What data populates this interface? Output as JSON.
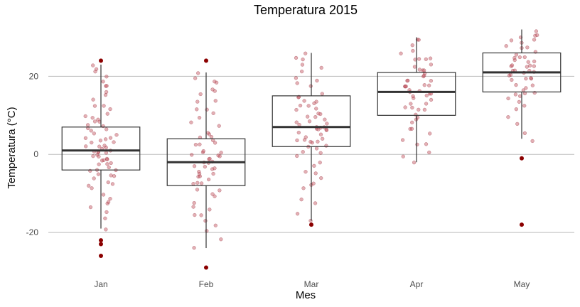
{
  "chart_data": {
    "type": "boxplot",
    "title": "Temperatura 2015",
    "xlabel": "Mes",
    "ylabel": "Temperatura (°C)",
    "categories": [
      "Jan",
      "Feb",
      "Mar",
      "Apr",
      "May"
    ],
    "yticks": [
      -20,
      0,
      20
    ],
    "ylim": [
      -30,
      33
    ],
    "grid": "horizontal",
    "colors": {
      "points": "#c0505a",
      "outliers": "#8b0000",
      "box": "#333333",
      "grid": "#bebebe"
    },
    "boxes": [
      {
        "category": "Jan",
        "q1": -4,
        "median": 1,
        "q3": 7,
        "whisker_low": -19,
        "whisker_high": 23,
        "outliers": [
          24,
          -22,
          -23,
          -26
        ]
      },
      {
        "category": "Feb",
        "q1": -8,
        "median": -2,
        "q3": 4,
        "whisker_low": -24,
        "whisker_high": 21,
        "outliers": [
          24,
          -29
        ]
      },
      {
        "category": "Mar",
        "q1": 2,
        "median": 7,
        "q3": 15,
        "whisker_low": -17,
        "whisker_high": 26,
        "outliers": [
          -18
        ]
      },
      {
        "category": "Apr",
        "q1": 10,
        "median": 16,
        "q3": 21,
        "whisker_low": -2,
        "whisker_high": 30,
        "outliers": []
      },
      {
        "category": "May",
        "q1": 16,
        "median": 21,
        "q3": 26,
        "whisker_low": 4,
        "whisker_high": 32,
        "outliers": [
          -1,
          -18
        ]
      }
    ],
    "jitter_points": [
      {
        "category": "Jan",
        "values": [
          -19,
          -17,
          -15,
          -14,
          -13,
          -12,
          -11,
          -10,
          -9,
          -8,
          -8,
          -7,
          -6,
          -6,
          -5,
          -5,
          -4,
          -4,
          -4,
          -3,
          -3,
          -2,
          -2,
          -2,
          -1,
          -1,
          -1,
          0,
          0,
          0,
          0,
          1,
          1,
          1,
          1,
          1,
          2,
          2,
          2,
          2,
          3,
          3,
          3,
          4,
          4,
          4,
          5,
          5,
          6,
          6,
          7,
          7,
          7,
          8,
          8,
          9,
          9,
          10,
          10,
          11,
          12,
          13,
          14,
          15,
          16,
          17,
          18,
          19,
          20,
          21,
          22,
          23
        ]
      },
      {
        "category": "Feb",
        "values": [
          -24,
          -22,
          -20,
          -18,
          -17,
          -16,
          -15,
          -14,
          -13,
          -12,
          -11,
          -10,
          -9,
          -9,
          -8,
          -8,
          -7,
          -7,
          -6,
          -6,
          -5,
          -5,
          -4,
          -4,
          -3,
          -3,
          -3,
          -2,
          -2,
          -2,
          -1,
          -1,
          -1,
          0,
          0,
          0,
          1,
          1,
          2,
          2,
          3,
          3,
          4,
          4,
          5,
          6,
          7,
          8,
          9,
          10,
          11,
          12,
          13,
          14,
          15,
          16,
          17,
          18,
          19,
          20,
          21
        ]
      },
      {
        "category": "Mar",
        "values": [
          -17,
          -15,
          -13,
          -11,
          -9,
          -8,
          -7,
          -6,
          -5,
          -4,
          -3,
          -2,
          -1,
          0,
          1,
          1,
          2,
          2,
          3,
          3,
          3,
          4,
          4,
          4,
          5,
          5,
          5,
          6,
          6,
          6,
          7,
          7,
          7,
          7,
          8,
          8,
          8,
          9,
          9,
          9,
          10,
          10,
          11,
          11,
          12,
          12,
          13,
          13,
          14,
          14,
          15,
          15,
          16,
          17,
          18,
          19,
          20,
          21,
          22,
          23,
          24,
          25,
          26
        ]
      },
      {
        "category": "Apr",
        "values": [
          -2,
          0,
          1,
          2,
          3,
          4,
          5,
          6,
          7,
          8,
          9,
          10,
          10,
          11,
          11,
          12,
          12,
          13,
          13,
          14,
          14,
          15,
          15,
          15,
          16,
          16,
          16,
          17,
          17,
          17,
          18,
          18,
          18,
          19,
          19,
          19,
          20,
          20,
          21,
          21,
          22,
          22,
          23,
          23,
          24,
          24,
          25,
          25,
          26,
          27,
          28,
          29,
          30
        ]
      },
      {
        "category": "May",
        "values": [
          4,
          6,
          8,
          10,
          11,
          12,
          13,
          14,
          15,
          15,
          16,
          16,
          17,
          17,
          18,
          18,
          19,
          19,
          19,
          20,
          20,
          20,
          21,
          21,
          21,
          21,
          22,
          22,
          22,
          23,
          23,
          23,
          24,
          24,
          24,
          25,
          25,
          25,
          26,
          26,
          27,
          27,
          28,
          28,
          29,
          29,
          30,
          30,
          31,
          32
        ]
      }
    ]
  }
}
